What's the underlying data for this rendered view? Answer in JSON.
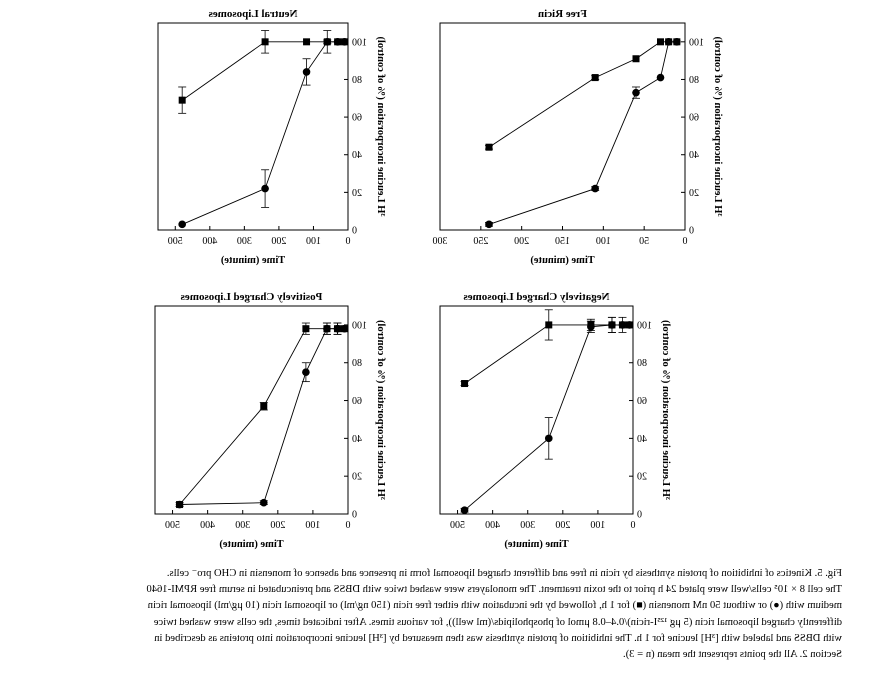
{
  "chart_data": [
    {
      "type": "line",
      "title": "Free Ricin",
      "xlabel": "Time (minute)",
      "ylabel": "³H Leucine incorporation (% of control)",
      "xlim": [
        0,
        300
      ],
      "ylim": [
        0,
        110
      ],
      "xticks": [
        0,
        50,
        100,
        150,
        200,
        250,
        300
      ],
      "yticks": [
        0,
        20,
        40,
        60,
        80,
        100
      ],
      "series": [
        {
          "marker": "square",
          "x": [
            10,
            20,
            30,
            60,
            110,
            240
          ],
          "y": [
            100,
            100,
            100,
            91,
            81,
            44
          ],
          "err": [
            0,
            0,
            0,
            0,
            1,
            1
          ]
        },
        {
          "marker": "circle",
          "x": [
            10,
            20,
            30,
            60,
            110,
            240
          ],
          "y": [
            100,
            100,
            81,
            73,
            22,
            3
          ],
          "err": [
            0,
            0,
            0,
            3,
            1,
            1
          ]
        }
      ]
    },
    {
      "type": "line",
      "title": "Neutral Liposomes",
      "xlabel": "Time (minute)",
      "ylabel": "³H Leucine incorporation (% of control)",
      "xlim": [
        0,
        550
      ],
      "ylim": [
        0,
        110
      ],
      "xticks": [
        0,
        100,
        200,
        300,
        400,
        500
      ],
      "yticks": [
        0,
        20,
        40,
        60,
        80,
        100
      ],
      "series": [
        {
          "marker": "square",
          "x": [
            10,
            30,
            60,
            120,
            240,
            480
          ],
          "y": [
            100,
            100,
            100,
            100,
            100,
            69
          ],
          "err": [
            0,
            0,
            1,
            0,
            6,
            7
          ]
        },
        {
          "marker": "circle",
          "x": [
            10,
            30,
            60,
            120,
            240,
            480
          ],
          "y": [
            100,
            100,
            100,
            84,
            22,
            3
          ],
          "err": [
            0,
            0,
            6,
            7,
            10,
            0
          ]
        }
      ]
    },
    {
      "type": "line",
      "title": "Negatively Charged Liposomes",
      "xlabel": "Time (minute)",
      "ylabel": "³H Leucine incorporation (% of control)",
      "xlim": [
        0,
        550
      ],
      "ylim": [
        0,
        110
      ],
      "xticks": [
        0,
        100,
        200,
        300,
        400,
        500
      ],
      "yticks": [
        0,
        20,
        40,
        60,
        80,
        100
      ],
      "series": [
        {
          "marker": "square",
          "x": [
            10,
            30,
            60,
            120,
            240,
            480
          ],
          "y": [
            100,
            100,
            100,
            100,
            100,
            69
          ],
          "err": [
            0,
            0,
            4,
            3,
            8,
            1
          ]
        },
        {
          "marker": "circle",
          "x": [
            10,
            30,
            60,
            120,
            240,
            480
          ],
          "y": [
            100,
            100,
            100,
            99,
            40,
            2
          ],
          "err": [
            0,
            4,
            4,
            3,
            11,
            1
          ]
        }
      ]
    },
    {
      "type": "line",
      "title": "Positively Charged Liposomes",
      "xlabel": "Time (minute)",
      "ylabel": "³H Leucine incorporation (% of control)",
      "xlim": [
        0,
        550
      ],
      "ylim": [
        0,
        110
      ],
      "xticks": [
        0,
        100,
        200,
        300,
        400,
        500
      ],
      "yticks": [
        0,
        20,
        40,
        60,
        80,
        100
      ],
      "series": [
        {
          "marker": "square",
          "x": [
            10,
            30,
            60,
            120,
            240,
            480
          ],
          "y": [
            98,
            98,
            98,
            98,
            57,
            5
          ],
          "err": [
            0,
            3,
            3,
            3,
            2,
            1
          ]
        },
        {
          "marker": "circle",
          "x": [
            10,
            30,
            60,
            120,
            240,
            480
          ],
          "y": [
            98,
            98,
            98,
            75,
            6,
            5
          ],
          "err": [
            0,
            3,
            3,
            5,
            1,
            0
          ]
        }
      ]
    }
  ],
  "caption": {
    "lines": [
      "Fig. 5.  Kinetics of inhibition of protein synthesis by ricin in free and different charged liposomal form in presence and absence of monensin in CHO pro⁻ cells.",
      "The cell 8 × 10⁵ cells/well were plated 24 h prior to the toxin treatment. The monolayers were washed twice with DBSS and preincubated in serum free RPMI-1640",
      "medium with (●) or without 50 nM monensin (■) for 1 h, followed by the incubation with either free ricin (150 ng/ml) or liposomal ricin (10 μg/ml) liposomal ricin",
      "differently charged liposomal ricin (5 μg ¹²⁵I-ricin)/0.4–0.8 μmol of phospholipids/(ml well)), for various times. After indicated times, the cells were washed twice",
      "with DBSS and labeled with [³H] leucine for 1 h. The inhibition of protein synthesis was then measured by [³H] leucine incorporation into proteins as described in",
      "Section 2. All the points represent the mean (n = 3)."
    ]
  }
}
